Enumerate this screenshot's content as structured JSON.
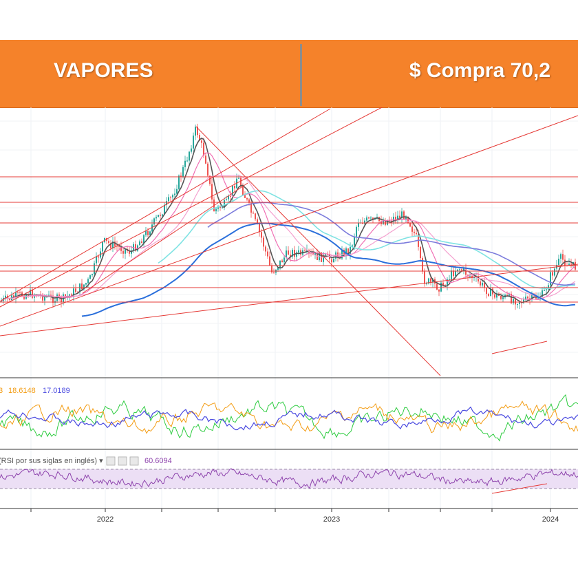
{
  "header": {
    "ticker": "VAPORES",
    "price_label": "$ Compra 70,2"
  },
  "chart_data": [
    {
      "type": "line",
      "panel": "price",
      "description_of_series": "candlesticks with moving averages and trend lines",
      "x_ticks": [
        "2022",
        "2023",
        "2024"
      ],
      "grid": true,
      "colors": {
        "up_candle": "#26a69a",
        "down_candle": "#ef5350",
        "ma_fast": "#555555",
        "ma_pink": "#f06fb4",
        "ma_light_pink": "#f4a0cf",
        "ma_cyan": "#7fe3e3",
        "ma_blue": "#7b7bdc",
        "ma_dark_blue": "#2a6fdb",
        "trend_lines": "#e53935"
      }
    },
    {
      "type": "line",
      "panel": "dmi",
      "legend_values": [
        "18.6148",
        "17.0189"
      ],
      "legend_colors": [
        "#f39c12",
        "#4a4ae0"
      ],
      "colors": {
        "plus_di": "#2ecc40",
        "minus_di": "#f39c12",
        "adx": "#4a4ae0"
      }
    },
    {
      "type": "line",
      "panel": "rsi",
      "title": "(RSI por sus siglas en inglés)",
      "value": "60.6094",
      "band": [
        30,
        70
      ],
      "ylim": [
        0,
        100
      ],
      "color": "#8e44ad"
    }
  ]
}
